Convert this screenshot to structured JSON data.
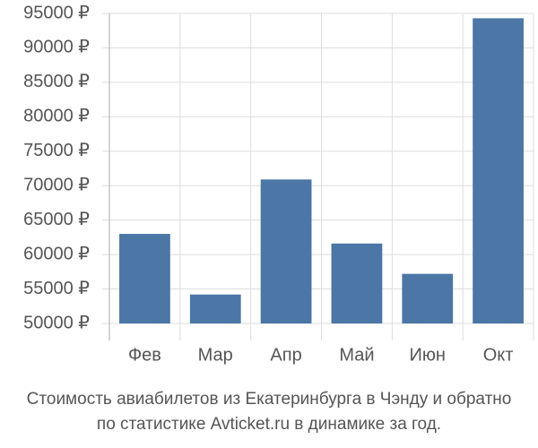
{
  "chart_data": {
    "type": "bar",
    "title": [
      "Стоимость авиабилетов из Екатеринбурга в Чэнду и обратно",
      "по статистике Avticket.ru в динамике за год."
    ],
    "categories": [
      "Фев",
      "Мар",
      "Апр",
      "Май",
      "Июн",
      "Окт"
    ],
    "values": [
      63000,
      54200,
      70900,
      61600,
      57200,
      94300
    ],
    "color": "#4b76a6",
    "ylim": [
      50000,
      95000
    ],
    "yticks": [
      {
        "value": 50000,
        "label": "50000 ₽"
      },
      {
        "value": 55000,
        "label": "55000 ₽"
      },
      {
        "value": 60000,
        "label": "60000 ₽"
      },
      {
        "value": 65000,
        "label": "65000 ₽"
      },
      {
        "value": 70000,
        "label": "70000 ₽"
      },
      {
        "value": 75000,
        "label": "75000 ₽"
      },
      {
        "value": 80000,
        "label": "80000 ₽"
      },
      {
        "value": 85000,
        "label": "85000 ₽"
      },
      {
        "value": 90000,
        "label": "90000 ₽"
      },
      {
        "value": 95000,
        "label": "95000 ₽"
      }
    ],
    "grid": true
  }
}
